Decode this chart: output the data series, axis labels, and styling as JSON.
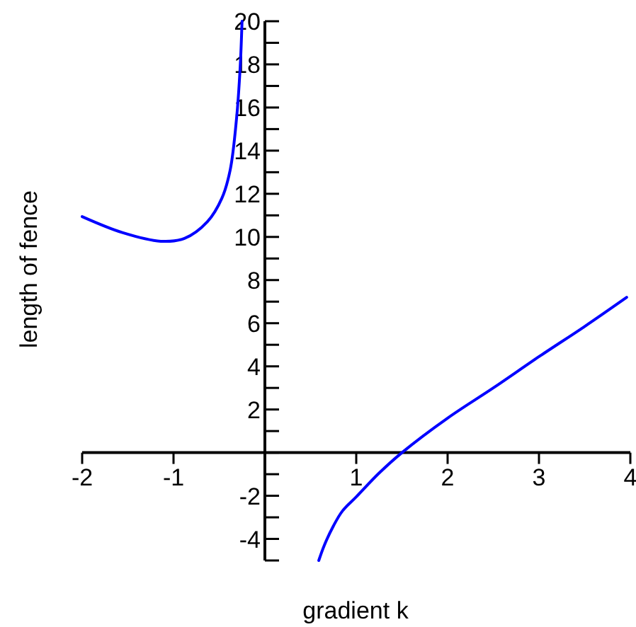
{
  "chart_data": {
    "type": "line",
    "xlabel": "gradient k",
    "ylabel": "length of fence",
    "xlim": [
      -2,
      4
    ],
    "ylim": [
      -5,
      20
    ],
    "xticks": [
      -2,
      -1,
      1,
      2,
      3,
      4
    ],
    "yticks": [
      {
        "value": -5,
        "label": null
      },
      -4,
      {
        "value": -3,
        "label": null
      },
      -2,
      {
        "value": -1,
        "label": null
      },
      {
        "value": 0,
        "label": null
      },
      {
        "value": 1,
        "label": null
      },
      2,
      {
        "value": 3,
        "label": null
      },
      4,
      {
        "value": 5,
        "label": null
      },
      6,
      {
        "value": 7,
        "label": null
      },
      8,
      {
        "value": 9,
        "label": null
      },
      10,
      {
        "value": 11,
        "label": null
      },
      12,
      {
        "value": 13,
        "label": null
      },
      14,
      {
        "value": 15,
        "label": null
      },
      16,
      {
        "value": 17,
        "label": null
      },
      18,
      {
        "value": 19,
        "label": null
      },
      20
    ],
    "series": [
      {
        "color": "#0000ff",
        "x": [
          -2,
          -1.56,
          -1.14,
          -0.88,
          -0.63,
          -0.47,
          -0.38,
          -0.31,
          -0.27,
          -0.25
        ],
        "values": [
          10.94,
          10.2,
          9.8,
          9.93,
          10.7,
          11.8,
          13.1,
          15.5,
          17.9,
          20
        ]
      },
      {
        "color": "#0000ff",
        "x": [
          0.59,
          0.65,
          0.75,
          0.85,
          1,
          1.25,
          1.5,
          2,
          2.5,
          3,
          3.5,
          3.96
        ],
        "values": [
          -5,
          -4.3,
          -3.4,
          -2.7,
          -2.05,
          -0.95,
          0,
          1.6,
          3.0,
          4.45,
          5.85,
          7.2
        ]
      }
    ]
  }
}
